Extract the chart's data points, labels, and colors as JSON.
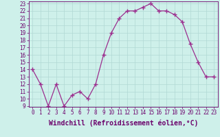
{
  "x": [
    0,
    1,
    2,
    3,
    4,
    5,
    6,
    7,
    8,
    9,
    10,
    11,
    12,
    13,
    14,
    15,
    16,
    17,
    18,
    19,
    20,
    21,
    22,
    23
  ],
  "y": [
    14,
    12,
    9,
    12,
    9,
    10.5,
    11,
    10,
    12,
    16,
    19,
    21,
    22,
    22,
    22.5,
    23,
    22,
    22,
    21.5,
    20.5,
    17.5,
    15,
    13,
    13
  ],
  "line_color": "#9b2d8e",
  "marker": "+",
  "marker_size": 4,
  "linewidth": 0.9,
  "background_color": "#cef0ea",
  "grid_color": "#b0d8d4",
  "xlabel": "Windchill (Refroidissement éolien,°C)",
  "xlabel_fontsize": 7,
  "ylim": [
    9,
    23
  ],
  "xlim": [
    -0.5,
    23.5
  ],
  "yticks": [
    9,
    10,
    11,
    12,
    13,
    14,
    15,
    16,
    17,
    18,
    19,
    20,
    21,
    22,
    23
  ],
  "xticks": [
    0,
    1,
    2,
    3,
    4,
    5,
    6,
    7,
    8,
    9,
    10,
    11,
    12,
    13,
    14,
    15,
    16,
    17,
    18,
    19,
    20,
    21,
    22,
    23
  ],
  "tick_fontsize": 5.5,
  "axis_color": "#6b006b"
}
